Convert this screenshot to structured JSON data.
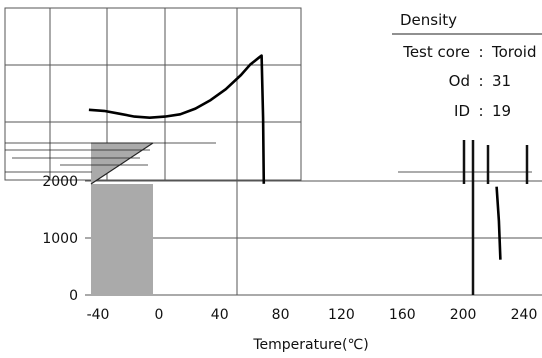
{
  "chart_data": {
    "type": "line",
    "xlabel": "Temperature(℃)",
    "x_ticks": [
      "-40",
      "0",
      "40",
      "80",
      "120",
      "160",
      "200",
      "240"
    ],
    "x_tick_values": [
      -40,
      0,
      40,
      80,
      120,
      160,
      200,
      240
    ],
    "y_ticks": [
      "0",
      "1000",
      "2000"
    ],
    "y_tick_values": [
      0,
      1000,
      2000
    ],
    "xlim": [
      -47,
      245
    ],
    "ylim": [
      0,
      4100
    ],
    "grid": true,
    "series": [
      {
        "x": [
          -46,
          -36,
          -26,
          -16,
          -6,
          4,
          14,
          24,
          34,
          44,
          54,
          60,
          66,
          67.5,
          68.5,
          69
        ],
        "y": [
          3250,
          3230,
          3180,
          3130,
          3110,
          3130,
          3170,
          3270,
          3420,
          3610,
          3860,
          4040,
          4170,
          4200,
          3100,
          1950
        ]
      },
      {
        "x": [
          222,
          223.5,
          224.5
        ],
        "y": [
          1900,
          1300,
          620
        ]
      }
    ],
    "legend": {
      "position": "top-right",
      "title": "Density",
      "lines": [
        {
          "label": "Test core",
          "sep": ":",
          "value": "Toroid"
        },
        {
          "label": "Od",
          "sep": ":",
          "value": "31"
        },
        {
          "label": "ID",
          "sep": ":",
          "value": "19"
        }
      ]
    }
  },
  "colors": {
    "line": "#000000",
    "grid": "#555555",
    "patch": "#aaaaaa"
  }
}
